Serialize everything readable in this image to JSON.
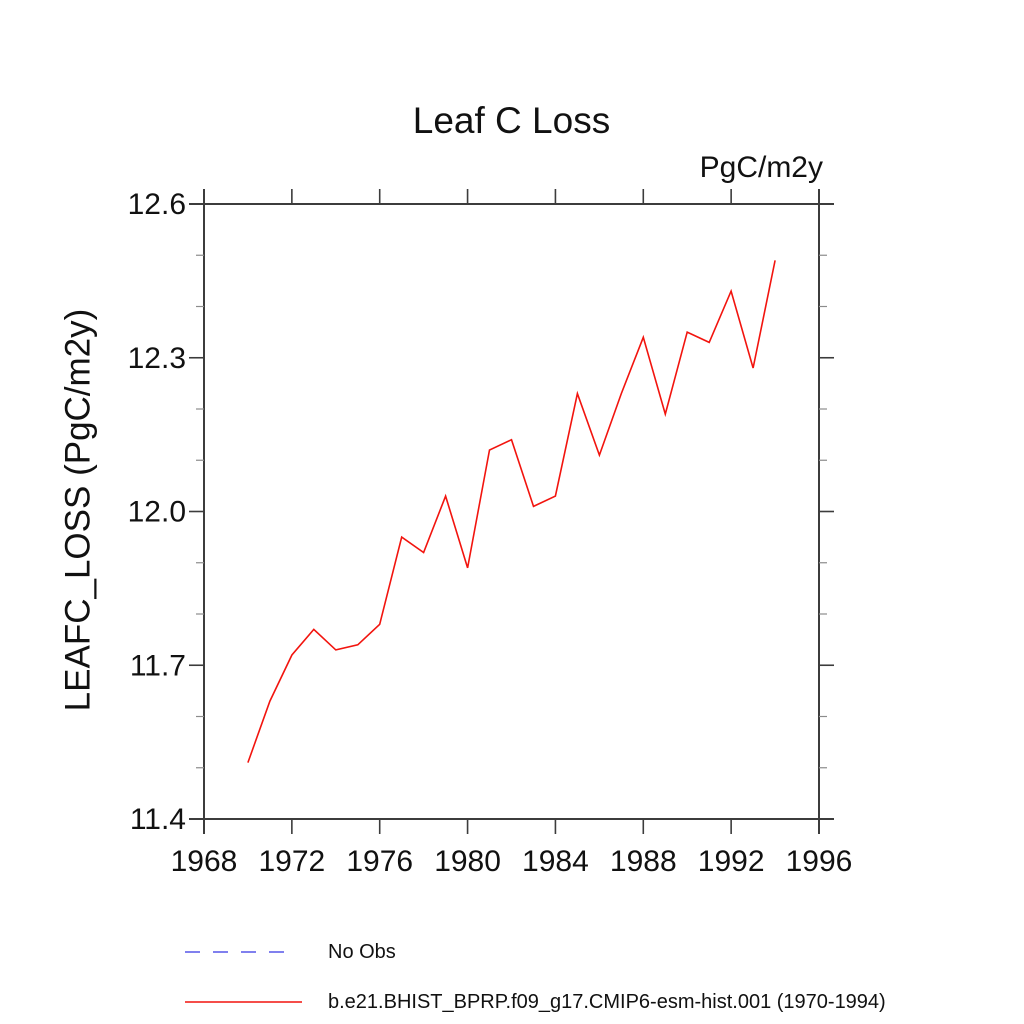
{
  "window": {
    "background": "#ffffff"
  },
  "chart_data": {
    "type": "line",
    "title": "Leaf C Loss",
    "units_label": "PgC/m2y",
    "ylabel": "LEAFC_LOSS (PgC/m2y)",
    "xlabel": "",
    "xlim": [
      1968,
      1996
    ],
    "ylim": [
      11.4,
      12.6
    ],
    "x_tick_step": 4,
    "x_tick_labels": [
      "1968",
      "1972",
      "1976",
      "1980",
      "1984",
      "1988",
      "1992",
      "1996"
    ],
    "y_tick_labels": [
      "11.4",
      "11.7",
      "12.0",
      "12.3",
      "12.6"
    ],
    "y_minor_step": 0.1,
    "grid": false,
    "legend_position": "bottom-left",
    "axis_color": "#3c3c3c",
    "minor_tick_color": "#8c8c8c",
    "text_color": "#111111",
    "series": [
      {
        "name": "b.e21.BHIST_BPRP.f09_g17.CMIP6-esm-hist.001 (1970-1994)",
        "color": "#f2140e",
        "style": "solid",
        "x": [
          1970,
          1971,
          1972,
          1973,
          1974,
          1975,
          1976,
          1977,
          1978,
          1979,
          1980,
          1981,
          1982,
          1983,
          1984,
          1985,
          1986,
          1987,
          1988,
          1989,
          1990,
          1991,
          1992,
          1993,
          1994
        ],
        "values": [
          11.51,
          11.63,
          11.72,
          11.77,
          11.73,
          11.74,
          11.78,
          11.95,
          11.92,
          12.03,
          11.89,
          12.12,
          12.14,
          12.01,
          12.03,
          12.23,
          12.11,
          12.23,
          12.34,
          12.19,
          12.35,
          12.33,
          12.43,
          12.28,
          12.49
        ]
      }
    ],
    "legend": [
      {
        "label": "No Obs",
        "color": "#8080ee",
        "style": "dashed"
      },
      {
        "label": "b.e21.BHIST_BPRP.f09_g17.CMIP6-esm-hist.001 (1970-1994)",
        "color": "#f2140e",
        "style": "solid"
      }
    ]
  }
}
